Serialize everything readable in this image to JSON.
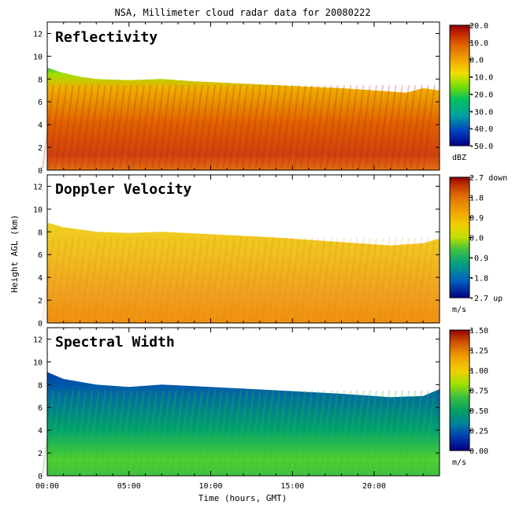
{
  "chart_data": {
    "type": "heatmap",
    "title": "NSA, Millimeter cloud radar data for 20080222",
    "xlabel": "Time (hours, GMT)",
    "ylabel": "Height AGL (km)",
    "xlim": [
      0,
      24
    ],
    "ylim": [
      0,
      13
    ],
    "x_ticks": [
      "00:00",
      "05:00",
      "10:00",
      "15:00",
      "20:00"
    ],
    "y_ticks": [
      "0",
      "2",
      "4",
      "6",
      "8",
      "10",
      "12"
    ],
    "panels": [
      {
        "label": "Reflectivity",
        "colorbar_ticks": [
          "20.0",
          "10.0",
          "0.0",
          "-10.0",
          "-20.0",
          "-30.0",
          "-40.0",
          "-50.0"
        ],
        "colorbar_unit": "dBZ",
        "colorbar_range": [
          -50,
          20
        ],
        "cloud_top_km": [
          [
            0,
            9.0
          ],
          [
            0.8,
            8.6
          ],
          [
            2,
            8.2
          ],
          [
            3,
            8.0
          ],
          [
            5,
            7.9
          ],
          [
            7,
            8.0
          ],
          [
            9,
            7.8
          ],
          [
            12,
            7.6
          ],
          [
            15,
            7.4
          ],
          [
            18,
            7.2
          ],
          [
            20,
            7.0
          ],
          [
            22,
            6.8
          ],
          [
            23,
            7.2
          ],
          [
            24,
            7.0
          ]
        ],
        "typical_value_dBZ": 0
      },
      {
        "label": "Doppler Velocity",
        "colorbar_ticks": [
          "2.7 down",
          "1.8",
          "0.9",
          "0.0",
          "-0.9",
          "-1.8",
          "-2.7 up"
        ],
        "colorbar_unit": "m/s",
        "colorbar_range": [
          -2.7,
          2.7
        ],
        "cloud_top_km": [
          [
            0,
            8.8
          ],
          [
            1,
            8.4
          ],
          [
            3,
            8.0
          ],
          [
            5,
            7.9
          ],
          [
            7,
            8.0
          ],
          [
            10,
            7.8
          ],
          [
            14,
            7.5
          ],
          [
            18,
            7.1
          ],
          [
            21,
            6.8
          ],
          [
            23,
            7.0
          ],
          [
            24,
            7.4
          ]
        ],
        "typical_value_ms": 0.6
      },
      {
        "label": "Spectral Width",
        "colorbar_ticks": [
          "1.50",
          "1.25",
          "1.00",
          "0.75",
          "0.50",
          "0.25",
          "0.00"
        ],
        "colorbar_unit": "m/s",
        "colorbar_range": [
          0,
          1.5
        ],
        "cloud_top_km": [
          [
            0,
            9.1
          ],
          [
            1,
            8.5
          ],
          [
            3,
            8.0
          ],
          [
            5,
            7.8
          ],
          [
            7,
            8.0
          ],
          [
            10,
            7.8
          ],
          [
            14,
            7.5
          ],
          [
            18,
            7.2
          ],
          [
            21,
            6.9
          ],
          [
            23,
            7.0
          ],
          [
            24,
            7.6
          ]
        ],
        "typical_value_ms": 0.2
      }
    ],
    "colors": {
      "reflectivity_scale": [
        "#000080",
        "#0040c0",
        "#00a0a0",
        "#00c060",
        "#80e000",
        "#f0e000",
        "#f0a000",
        "#e06000",
        "#c02000",
        "#900000"
      ],
      "velocity_scale": [
        "#000080",
        "#0060c0",
        "#00a080",
        "#40c040",
        "#c0e000",
        "#f0d000",
        "#f0a000",
        "#e07000",
        "#c03000",
        "#900000"
      ],
      "width_scale": [
        "#000080",
        "#0040b0",
        "#0080a0",
        "#00a060",
        "#40c040",
        "#a0e000",
        "#f0d000",
        "#f0a000",
        "#d05000",
        "#900000"
      ]
    }
  }
}
